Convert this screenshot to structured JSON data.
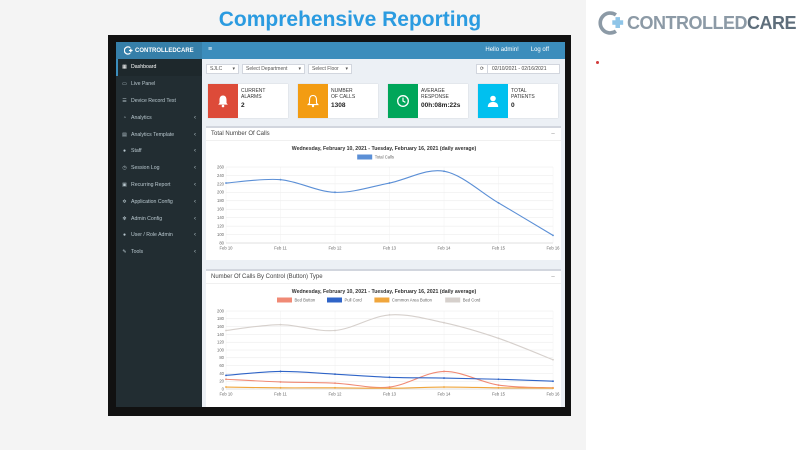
{
  "slide": {
    "title": "Comprehensive Reporting"
  },
  "brand": {
    "name_a": "CONTROLLED",
    "name_b": "CARE"
  },
  "app": {
    "logo_text": "CONTROLLEDCARE",
    "menu_icon": "hamburger-icon",
    "greeting": "Hello admin!",
    "logout": "Log off"
  },
  "sidebar": {
    "items": [
      {
        "label": "Dashboard",
        "icon": "dashboard-icon",
        "chevron": false
      },
      {
        "label": "Live Panel",
        "icon": "monitor-icon",
        "chevron": false
      },
      {
        "label": "Device Record Test",
        "icon": "list-icon",
        "chevron": false
      },
      {
        "label": "Analytics",
        "icon": "pie-chart-icon",
        "chevron": true
      },
      {
        "label": "Analytics Template",
        "icon": "file-icon",
        "chevron": true
      },
      {
        "label": "Staff",
        "icon": "user-icon",
        "chevron": true
      },
      {
        "label": "Session Log",
        "icon": "clock-icon",
        "chevron": true
      },
      {
        "label": "Recurring Report",
        "icon": "calendar-icon",
        "chevron": true
      },
      {
        "label": "Application Config",
        "icon": "gear-icon",
        "chevron": true
      },
      {
        "label": "Admin Config",
        "icon": "gears-icon",
        "chevron": true
      },
      {
        "label": "User / Role Admin",
        "icon": "users-icon",
        "chevron": true
      },
      {
        "label": "Tools",
        "icon": "wrench-icon",
        "chevron": true
      }
    ]
  },
  "filters": {
    "facility": "SJLC",
    "department": "Select Department",
    "floor": "Select Floor",
    "date_range": "02/10/2021 - 02/16/2021"
  },
  "stats": [
    {
      "label1": "CURRENT",
      "label2": "ALARMS",
      "value": "2",
      "color": "#dd4b39",
      "icon": "bell-icon"
    },
    {
      "label1": "NUMBER",
      "label2": "OF CALLS",
      "value": "1308",
      "color": "#f39c12",
      "icon": "bell-icon"
    },
    {
      "label1": "AVERAGE",
      "label2": "RESPONSE",
      "value": "00h:08m:22s",
      "color": "#00a65a",
      "icon": "clock-icon"
    },
    {
      "label1": "TOTAL",
      "label2": "PATIENTS",
      "value": "0",
      "color": "#00c0ef",
      "icon": "user-icon"
    }
  ],
  "panels": {
    "total_calls_title": "Total Number Of Calls",
    "by_type_title": "Number Of Calls By Control (Button) Type",
    "minimize": "−"
  },
  "chart_data": [
    {
      "type": "line",
      "title": "Wednesday, February 10, 2021 - Tuesday, February 16, 2021 (daily average)",
      "categories": [
        "Feb 10",
        "Feb 11",
        "Feb 12",
        "Feb 13",
        "Feb 14",
        "Feb 15",
        "Feb 16"
      ],
      "series": [
        {
          "name": "Total Calls",
          "values": [
            222,
            230,
            200,
            222,
            250,
            175,
            98
          ],
          "color": "#5b8fd6"
        }
      ],
      "ylim": [
        80,
        260
      ],
      "yticks": [
        80,
        100,
        120,
        140,
        160,
        180,
        200,
        220,
        240,
        260
      ],
      "grid": true,
      "legend": "top"
    },
    {
      "type": "line",
      "title": "Wednesday, February 10, 2021 - Tuesday, February 16, 2021 (daily average)",
      "categories": [
        "Feb 10",
        "Feb 11",
        "Feb 12",
        "Feb 13",
        "Feb 14",
        "Feb 15",
        "Feb 16"
      ],
      "series": [
        {
          "name": "Bed Button",
          "values": [
            25,
            18,
            15,
            5,
            45,
            10,
            3
          ],
          "color": "#f08a75"
        },
        {
          "name": "Pull Cord",
          "values": [
            35,
            45,
            38,
            30,
            28,
            25,
            20
          ],
          "color": "#2f64c7"
        },
        {
          "name": "Common Area Button",
          "values": [
            5,
            3,
            3,
            2,
            5,
            3,
            2
          ],
          "color": "#f0a63c"
        },
        {
          "name": "Bed Cord",
          "values": [
            150,
            165,
            150,
            190,
            170,
            130,
            75
          ],
          "color": "#d6d0cc"
        }
      ],
      "ylim": [
        0,
        200
      ],
      "yticks": [
        0,
        20,
        40,
        60,
        80,
        100,
        120,
        140,
        160,
        180,
        200
      ],
      "grid": true,
      "legend": "top"
    }
  ]
}
